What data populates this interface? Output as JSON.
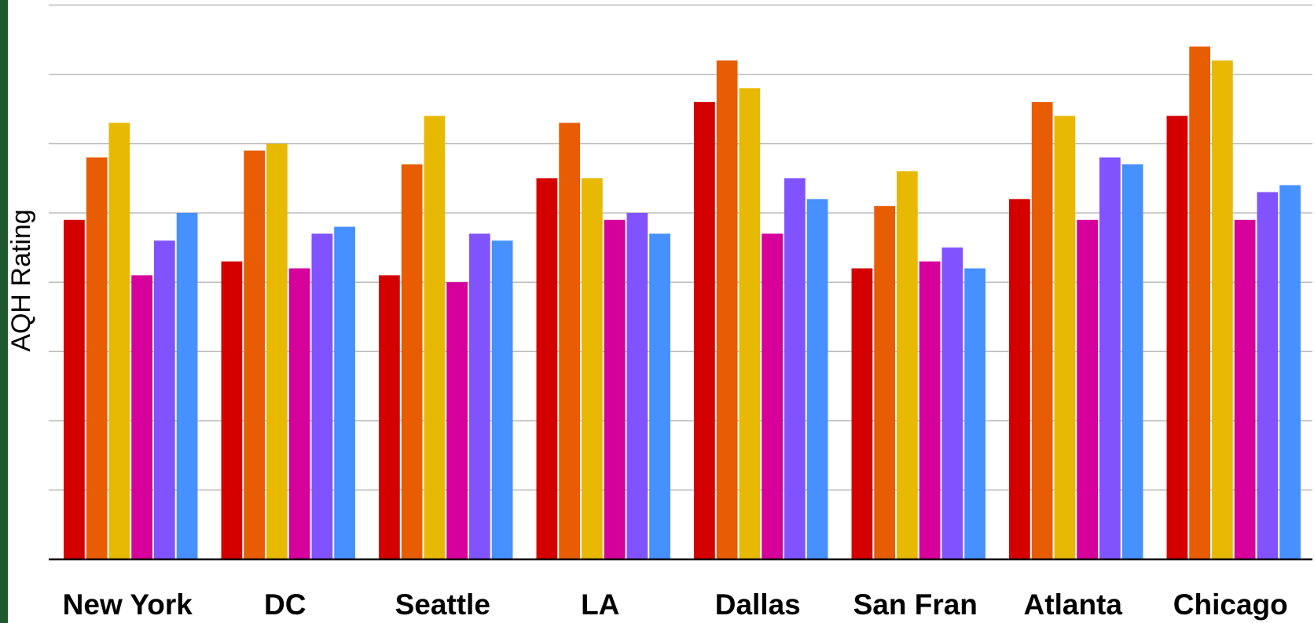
{
  "chart_data": {
    "type": "bar",
    "y_label": "AQH Rating",
    "categories": [
      "New York",
      "DC",
      "Seattle",
      "LA",
      "Dallas",
      "San Fran",
      "Atlanta",
      "Chicago"
    ],
    "series": [
      {
        "color": "#d40000",
        "values": [
          4.9,
          4.3,
          4.1,
          5.5,
          6.6,
          4.2,
          5.2,
          6.4
        ]
      },
      {
        "color": "#e85d04",
        "values": [
          5.8,
          5.9,
          5.7,
          6.3,
          7.2,
          5.1,
          6.6,
          7.4
        ]
      },
      {
        "color": "#e8b904",
        "values": [
          6.3,
          6.0,
          6.4,
          5.5,
          6.8,
          5.6,
          6.4,
          7.2
        ]
      },
      {
        "color": "#d6009a",
        "values": [
          4.1,
          4.2,
          4.0,
          4.9,
          4.7,
          4.3,
          4.9,
          4.9
        ]
      },
      {
        "color": "#8153ff",
        "values": [
          4.6,
          4.7,
          4.7,
          5.0,
          5.5,
          4.5,
          5.8,
          5.3
        ]
      },
      {
        "color": "#4690ff",
        "values": [
          5.0,
          4.8,
          4.6,
          4.7,
          5.2,
          4.2,
          5.7,
          5.4
        ]
      }
    ],
    "ylim": [
      0,
      8
    ],
    "yticks": [
      0,
      1,
      2,
      3,
      4,
      5,
      6,
      7,
      8
    ],
    "grid": true
  }
}
